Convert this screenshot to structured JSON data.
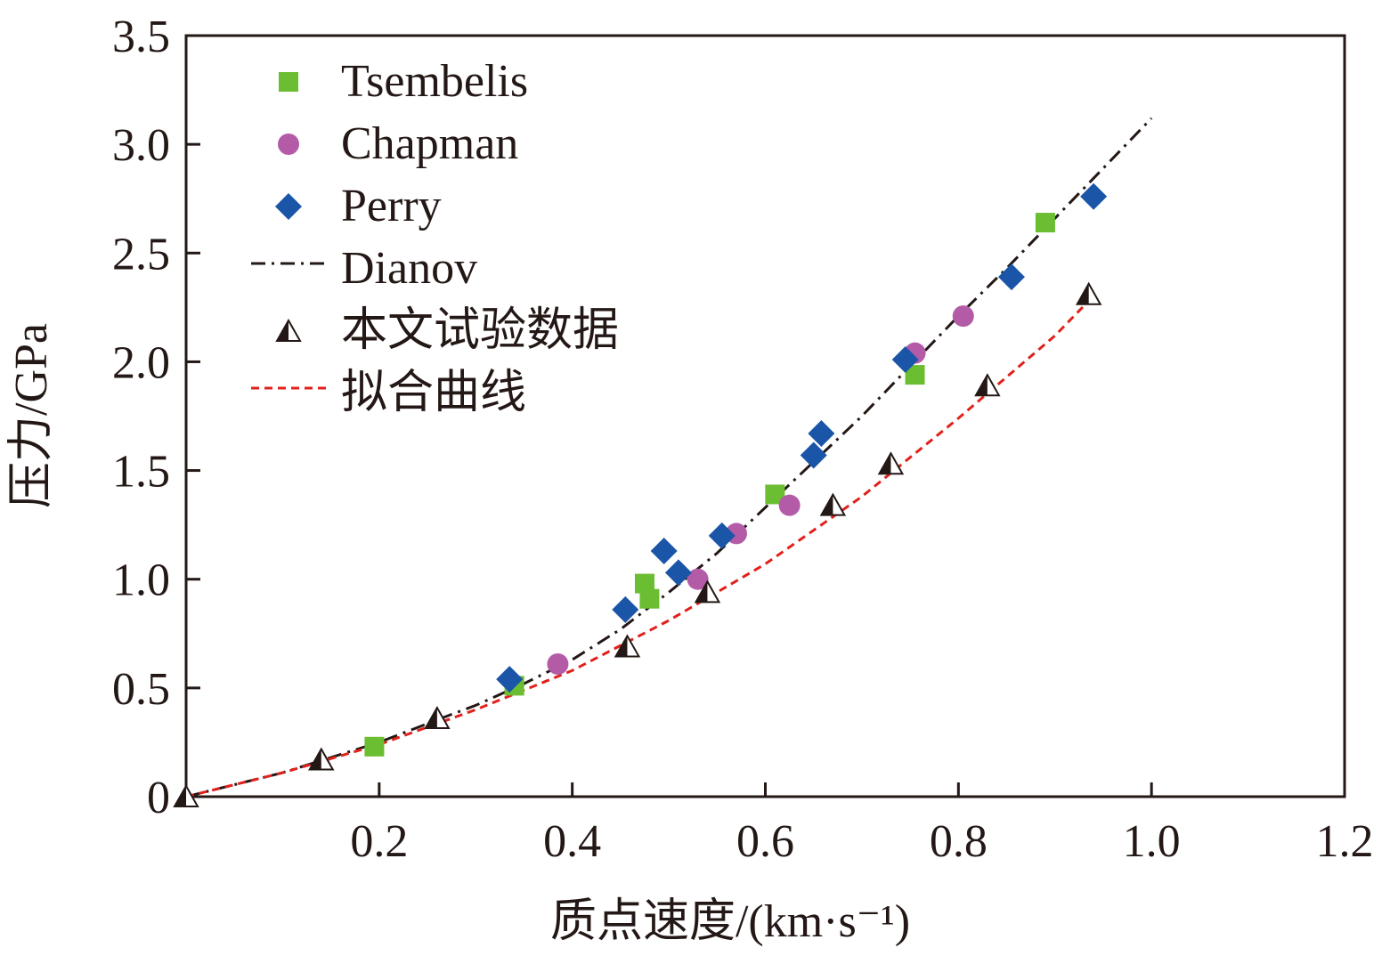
{
  "chart_data": {
    "type": "scatter",
    "xlabel": "质点速度/(km·s⁻¹)",
    "ylabel": "压力/GPa",
    "xlim": [
      0,
      1.2
    ],
    "ylim": [
      0,
      3.5
    ],
    "xticks": [
      0.2,
      0.4,
      0.6,
      0.8,
      1.0,
      1.2
    ],
    "xtick_labels": [
      "0.2",
      "0.4",
      "0.6",
      "0.8",
      "1.0",
      "1.2"
    ],
    "yticks": [
      0,
      0.5,
      1.0,
      1.5,
      2.0,
      2.5,
      3.0,
      3.5
    ],
    "ytick_labels": [
      "0",
      "0.5",
      "1.0",
      "1.5",
      "2.0",
      "2.5",
      "3.0",
      "3.5"
    ],
    "grid": false,
    "legend_position": "top-left",
    "series": [
      {
        "name": "Tsembelis",
        "kind": "scatter",
        "marker": "square",
        "color": "#6bbd32",
        "x": [
          0.195,
          0.34,
          0.475,
          0.48,
          0.61,
          0.755,
          0.89
        ],
        "y": [
          0.23,
          0.51,
          0.98,
          0.91,
          1.39,
          1.94,
          2.64
        ]
      },
      {
        "name": "Chapman",
        "kind": "scatter",
        "marker": "circle",
        "color": "#b45ba8",
        "x": [
          0.385,
          0.53,
          0.57,
          0.625,
          0.755,
          0.805
        ],
        "y": [
          0.61,
          1.0,
          1.21,
          1.34,
          2.04,
          2.21
        ]
      },
      {
        "name": "Perry",
        "kind": "scatter",
        "marker": "diamond",
        "color": "#1a55a8",
        "x": [
          0.335,
          0.455,
          0.495,
          0.51,
          0.555,
          0.65,
          0.658,
          0.745,
          0.855,
          0.94
        ],
        "y": [
          0.54,
          0.86,
          1.13,
          1.03,
          1.2,
          1.57,
          1.67,
          2.01,
          2.39,
          2.76
        ]
      },
      {
        "name": "Dianov",
        "kind": "line",
        "style": "dash-dot",
        "color": "#231815",
        "x": [
          0.0,
          0.1,
          0.2,
          0.27,
          0.3,
          0.35,
          0.4,
          0.45,
          0.5,
          0.55,
          0.6,
          0.65,
          0.7,
          0.75,
          0.8,
          0.85,
          0.9,
          0.95,
          1.0
        ],
        "y": [
          0.0,
          0.11,
          0.25,
          0.37,
          0.42,
          0.52,
          0.63,
          0.77,
          0.94,
          1.12,
          1.33,
          1.54,
          1.75,
          1.98,
          2.21,
          2.43,
          2.66,
          2.89,
          3.12
        ]
      },
      {
        "name": "本文试验数据",
        "kind": "scatter",
        "marker": "half-triangle",
        "color": "#231815",
        "x": [
          0.0,
          0.14,
          0.26,
          0.457,
          0.54,
          0.67,
          0.73,
          0.83,
          0.935
        ],
        "y": [
          0.0,
          0.17,
          0.36,
          0.69,
          0.94,
          1.34,
          1.53,
          1.89,
          2.31
        ]
      },
      {
        "name": "拟合曲线",
        "kind": "line",
        "style": "dashed",
        "color": "#e0211c",
        "x": [
          0.0,
          0.1,
          0.2,
          0.3,
          0.4,
          0.5,
          0.6,
          0.7,
          0.8,
          0.9,
          0.935
        ],
        "y": [
          0.0,
          0.11,
          0.24,
          0.4,
          0.58,
          0.81,
          1.07,
          1.38,
          1.74,
          2.12,
          2.28
        ]
      }
    ]
  }
}
